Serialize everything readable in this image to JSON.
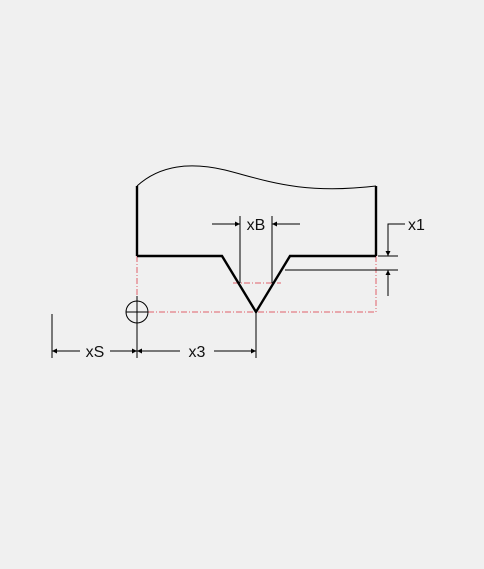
{
  "labels": {
    "xB": "xB",
    "x1": "x1",
    "xS": "xS",
    "x3": "x3"
  },
  "colors": {
    "background": "#f0f0f0",
    "outline": "#000000",
    "hidden_line": "#e0606a"
  }
}
